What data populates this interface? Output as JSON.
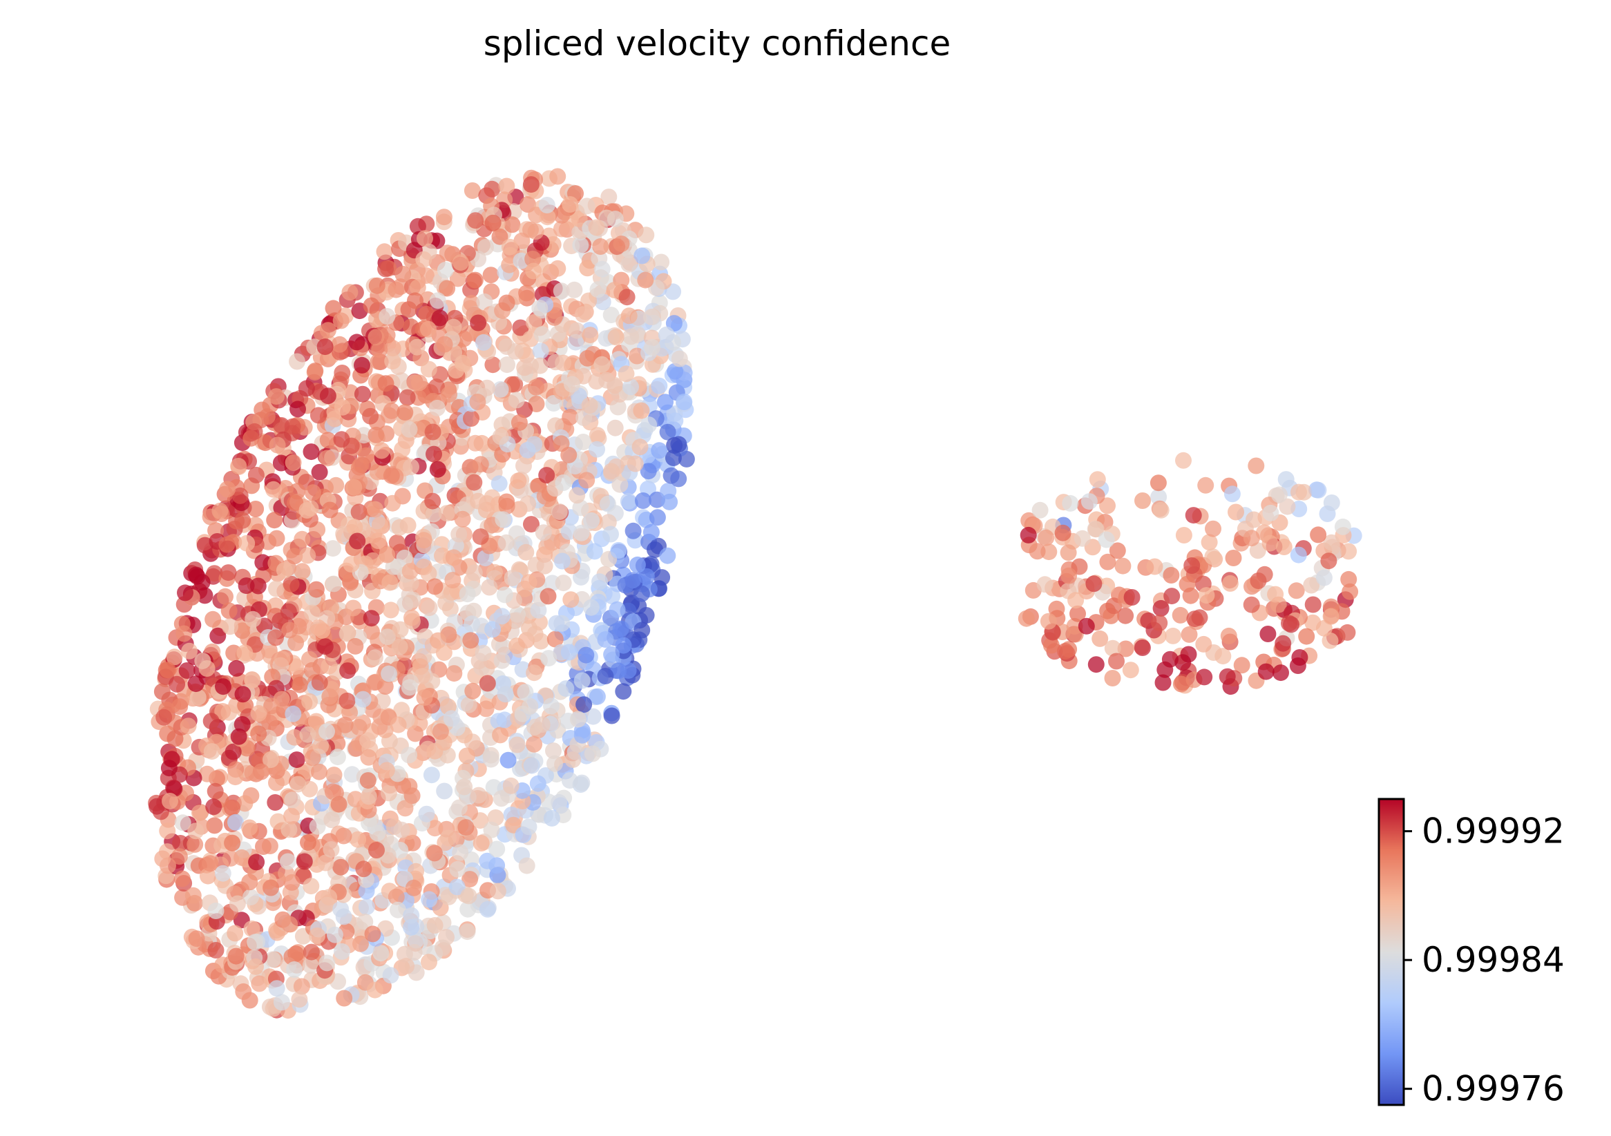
{
  "chart_data": {
    "type": "scatter",
    "title": "spliced velocity confidence",
    "xlabel": "",
    "ylabel": "",
    "axes_visible": false,
    "grid": false,
    "colormap": "coolwarm",
    "colormap_stops": [
      "#3b4cc0",
      "#7396f5",
      "#b0cbfc",
      "#dddddd",
      "#f5b89c",
      "#e8765c",
      "#b40426"
    ],
    "colorbar": {
      "placement": "bottom-right",
      "range": [
        0.99975,
        0.99994
      ],
      "ticks": [
        {
          "value": 0.99992,
          "label": "0.99992"
        },
        {
          "value": 0.99984,
          "label": "0.99984"
        },
        {
          "value": 0.99976,
          "label": "0.99976"
        }
      ]
    },
    "clusters": [
      {
        "description": "large elongated cluster (left)",
        "x_range": [
          0.05,
          0.47
        ],
        "y_range": [
          0.05,
          0.93
        ],
        "n_points": 2600,
        "value_gradient": "high on the left, decreasing toward the upper-right edge"
      },
      {
        "description": "small cluster (right)",
        "x_range": [
          0.62,
          0.85
        ],
        "y_range": [
          0.37,
          0.62
        ],
        "n_points": 260,
        "value_gradient": "high at the bottom, lowest at the upper-right"
      }
    ]
  }
}
